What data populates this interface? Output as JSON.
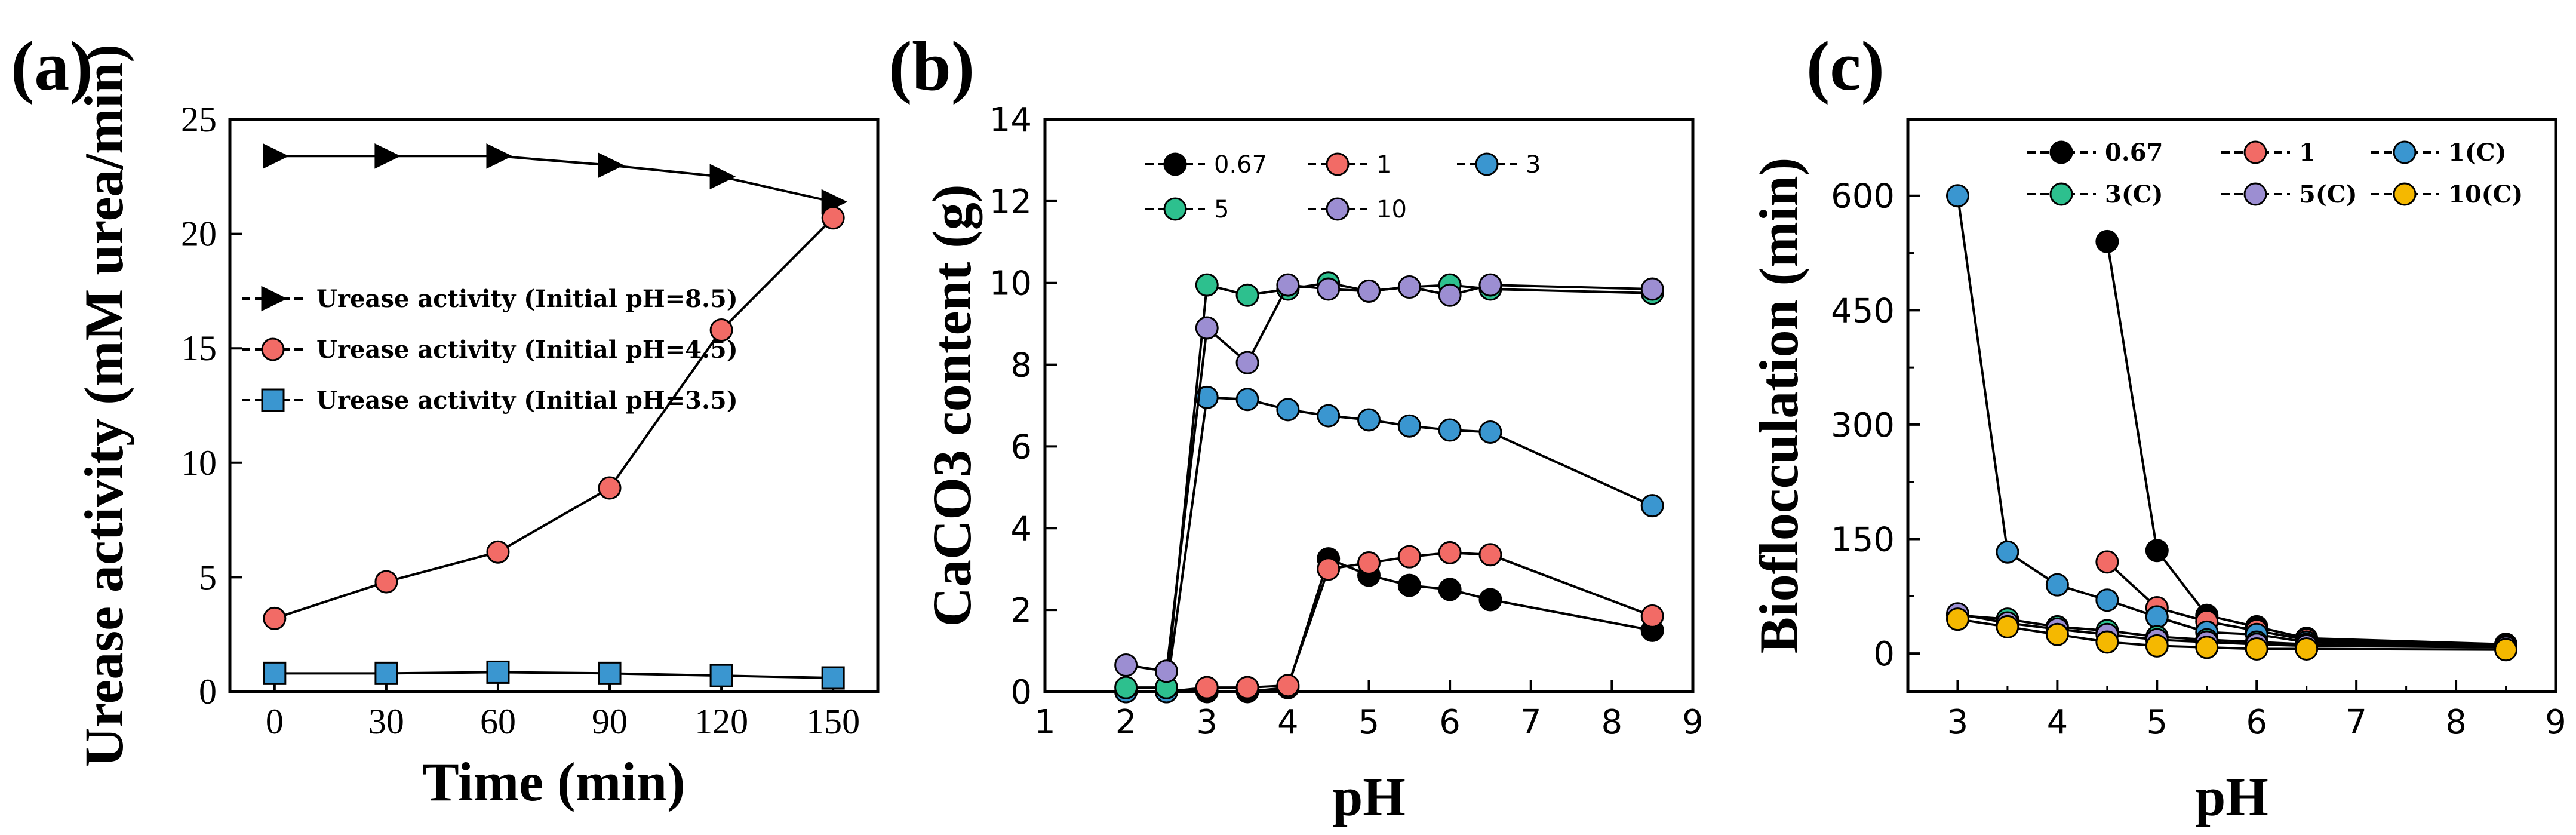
{
  "panels": {
    "a": {
      "label": "(a)"
    },
    "b": {
      "label": "(b)"
    },
    "c": {
      "label": "(c)"
    }
  },
  "chart_data": [
    {
      "id": "a",
      "type": "line",
      "title": "",
      "xlabel": "Time (min)",
      "ylabel": "Urease activity (mM urea/min)",
      "xlim": [
        -12,
        162
      ],
      "ylim": [
        0,
        25
      ],
      "xticks": [
        0,
        30,
        60,
        90,
        120,
        150
      ],
      "yticks": [
        0,
        5,
        10,
        15,
        20,
        25
      ],
      "legend_position": "center-left",
      "series": [
        {
          "name": "Urease activity (Initial pH=8.5)",
          "marker": "triangle-right",
          "color": "#000000",
          "dashed_in_legend": true,
          "x": [
            0,
            30,
            60,
            90,
            120,
            150
          ],
          "y": [
            23.4,
            23.4,
            23.4,
            23.0,
            22.5,
            21.4
          ]
        },
        {
          "name": "Urease activity (Initial pH=4.5)",
          "marker": "circle",
          "color": "#F26B66",
          "x": [
            0,
            30,
            60,
            90,
            120,
            150
          ],
          "y": [
            3.2,
            4.8,
            6.1,
            8.9,
            15.8,
            20.7
          ]
        },
        {
          "name": "Urease activity (Initial pH=3.5)",
          "marker": "square",
          "color": "#3A96D0",
          "x": [
            0,
            30,
            60,
            90,
            120,
            150
          ],
          "y": [
            0.8,
            0.8,
            0.85,
            0.8,
            0.7,
            0.6
          ]
        }
      ]
    },
    {
      "id": "b",
      "type": "line",
      "title": "",
      "xlabel": "pH",
      "ylabel": "CaCO3 content (g)",
      "xlim": [
        1,
        9
      ],
      "ylim": [
        0,
        14
      ],
      "xticks": [
        1,
        2,
        3,
        4,
        5,
        6,
        7,
        8,
        9
      ],
      "yticks": [
        0,
        2,
        4,
        6,
        8,
        10,
        12,
        14
      ],
      "legend_position": "top-left",
      "series": [
        {
          "name": "0.67",
          "marker": "circle",
          "color": "#000000",
          "x": [
            2,
            2.5,
            3,
            3.5,
            4,
            4.5,
            5,
            5.5,
            6,
            6.5,
            8.5
          ],
          "y": [
            0,
            0,
            0,
            0,
            0.1,
            3.25,
            2.85,
            2.6,
            2.5,
            2.25,
            1.5
          ]
        },
        {
          "name": "1",
          "marker": "circle",
          "color": "#F26B66",
          "x": [
            2,
            2.5,
            3,
            3.5,
            4,
            4.5,
            5,
            5.5,
            6,
            6.5,
            8.5
          ],
          "y": [
            0,
            0,
            0.1,
            0.1,
            0.15,
            3.0,
            3.15,
            3.3,
            3.4,
            3.35,
            1.85
          ]
        },
        {
          "name": "3",
          "marker": "circle",
          "color": "#3A96D0",
          "x": [
            2,
            2.5,
            3,
            3.5,
            4,
            4.5,
            5,
            5.5,
            6,
            6.5,
            8.5
          ],
          "y": [
            0,
            0,
            7.2,
            7.15,
            6.9,
            6.75,
            6.65,
            6.5,
            6.4,
            6.35,
            4.55
          ]
        },
        {
          "name": "5",
          "marker": "circle",
          "color": "#2DC08E",
          "x": [
            2,
            2.5,
            3,
            3.5,
            4,
            4.5,
            5,
            5.5,
            6,
            6.5,
            8.5
          ],
          "y": [
            0.1,
            0.1,
            9.95,
            9.7,
            9.85,
            10.0,
            9.8,
            9.9,
            9.95,
            9.85,
            9.75
          ]
        },
        {
          "name": "10",
          "marker": "circle",
          "color": "#9C8ED2",
          "x": [
            2,
            2.5,
            3,
            3.5,
            4,
            4.5,
            5,
            5.5,
            6,
            6.5,
            8.5
          ],
          "y": [
            0.65,
            0.5,
            8.9,
            8.05,
            9.95,
            9.85,
            9.8,
            9.9,
            9.7,
            9.95,
            9.85
          ]
        }
      ]
    },
    {
      "id": "c",
      "type": "line",
      "title": "",
      "xlabel": "pH",
      "ylabel": "Bioflocculation (min)",
      "xlim": [
        2.5,
        9
      ],
      "ylim": [
        -50,
        700
      ],
      "xticks": [
        3,
        4,
        5,
        6,
        7,
        8,
        9
      ],
      "yticks": [
        0,
        150,
        300,
        450,
        600
      ],
      "legend_position": "top",
      "series": [
        {
          "name": "0.67",
          "marker": "circle",
          "color": "#000000",
          "x": [
            4.5,
            5,
            5.5,
            6,
            6.5,
            8.5
          ],
          "y": [
            540,
            135,
            50,
            35,
            20,
            12
          ]
        },
        {
          "name": "1",
          "marker": "circle",
          "color": "#F26B66",
          "x": [
            4.5,
            5,
            5.5,
            6,
            6.5,
            8.5
          ],
          "y": [
            120,
            60,
            42,
            30,
            18,
            12
          ]
        },
        {
          "name": "1(C)",
          "marker": "circle",
          "color": "#3A96D0",
          "x": [
            3,
            3.5,
            4,
            4.5,
            5,
            5.5,
            6,
            6.5,
            8.5
          ],
          "y": [
            600,
            133,
            90,
            70,
            48,
            28,
            25,
            15,
            10
          ]
        },
        {
          "name": "3(C)",
          "marker": "circle",
          "color": "#2DC08E",
          "x": [
            3,
            3.5,
            4,
            4.5,
            5,
            5.5,
            6,
            6.5,
            8.5
          ],
          "y": [
            50,
            45,
            35,
            30,
            22,
            18,
            15,
            12,
            8
          ]
        },
        {
          "name": "5(C)",
          "marker": "circle",
          "color": "#9C8ED2",
          "x": [
            3,
            3.5,
            4,
            4.5,
            5,
            5.5,
            6,
            6.5,
            8.5
          ],
          "y": [
            52,
            40,
            32,
            25,
            18,
            15,
            12,
            10,
            8
          ]
        },
        {
          "name": "10(C)",
          "marker": "circle",
          "color": "#F5B800",
          "x": [
            3,
            3.5,
            4,
            4.5,
            5,
            5.5,
            6,
            6.5,
            8.5
          ],
          "y": [
            45,
            35,
            25,
            15,
            10,
            8,
            6,
            6,
            5
          ]
        }
      ]
    }
  ]
}
